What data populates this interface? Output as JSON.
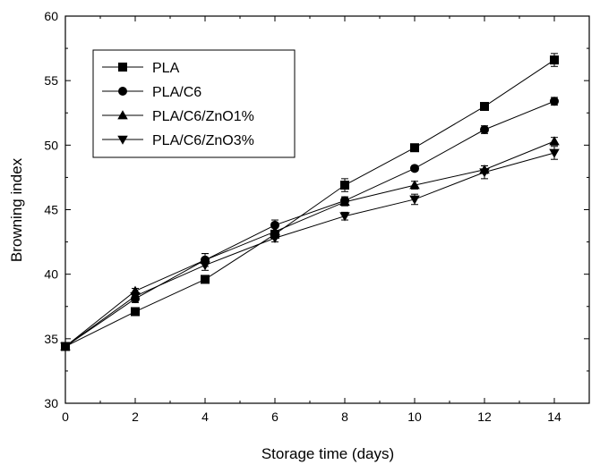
{
  "chart_data": {
    "type": "line",
    "xlabel": "Storage time (days)",
    "ylabel": "Browning index",
    "xlim": [
      0,
      15
    ],
    "ylim": [
      30,
      60
    ],
    "xticks": [
      0,
      2,
      4,
      6,
      8,
      10,
      12,
      14
    ],
    "yticks": [
      30,
      35,
      40,
      45,
      50,
      55,
      60
    ],
    "grid": false,
    "legend_position": "top-left",
    "x": [
      0,
      2,
      4,
      6,
      8,
      10,
      12,
      14
    ],
    "series": [
      {
        "name": "PLA",
        "marker": "square",
        "values": [
          34.4,
          37.1,
          39.6,
          43.1,
          46.9,
          49.8,
          53.0,
          56.6
        ],
        "error": [
          0.2,
          0.2,
          0.2,
          0.3,
          0.5,
          0.2,
          0.2,
          0.5
        ]
      },
      {
        "name": "PLA/C6",
        "marker": "circle",
        "values": [
          34.4,
          38.1,
          41.1,
          43.8,
          45.7,
          48.2,
          51.2,
          53.4
        ],
        "error": [
          0.2,
          0.3,
          0.5,
          0.4,
          0.3,
          0.2,
          0.3,
          0.3
        ]
      },
      {
        "name": "PLA/C6/ZnO1%",
        "marker": "triangle-up",
        "values": [
          34.4,
          38.7,
          41.1,
          43.3,
          45.6,
          46.9,
          48.1,
          50.3
        ],
        "error": [
          0.2,
          0.2,
          0.5,
          0.3,
          0.3,
          0.3,
          0.3,
          0.3
        ]
      },
      {
        "name": "PLA/C6/ZnO3%",
        "marker": "triangle-down",
        "values": [
          34.4,
          38.3,
          40.7,
          42.8,
          44.5,
          45.8,
          47.9,
          49.4
        ],
        "error": [
          0.2,
          0.3,
          0.4,
          0.3,
          0.3,
          0.4,
          0.5,
          0.5
        ]
      }
    ]
  }
}
